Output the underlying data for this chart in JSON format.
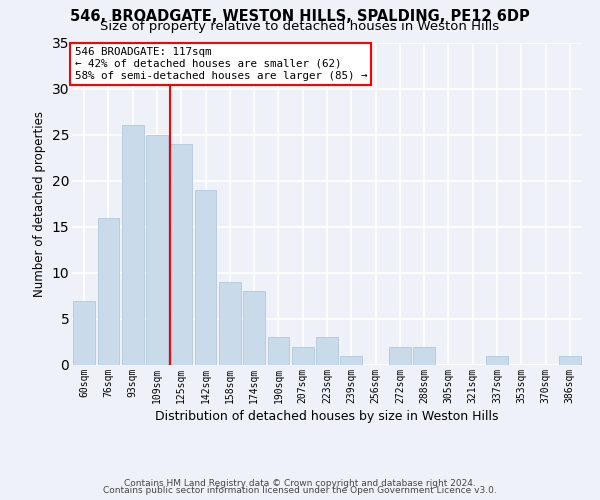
{
  "title1": "546, BROADGATE, WESTON HILLS, SPALDING, PE12 6DP",
  "title2": "Size of property relative to detached houses in Weston Hills",
  "xlabel": "Distribution of detached houses by size in Weston Hills",
  "ylabel": "Number of detached properties",
  "bar_color": "#c9daea",
  "bar_edgecolor": "#b0c8dc",
  "categories": [
    "60sqm",
    "76sqm",
    "93sqm",
    "109sqm",
    "125sqm",
    "142sqm",
    "158sqm",
    "174sqm",
    "190sqm",
    "207sqm",
    "223sqm",
    "239sqm",
    "256sqm",
    "272sqm",
    "288sqm",
    "305sqm",
    "321sqm",
    "337sqm",
    "353sqm",
    "370sqm",
    "386sqm"
  ],
  "values": [
    7,
    16,
    26,
    25,
    24,
    19,
    9,
    8,
    3,
    2,
    3,
    1,
    0,
    2,
    2,
    0,
    0,
    1,
    0,
    0,
    1
  ],
  "annotation_text": "546 BROADGATE: 117sqm\n← 42% of detached houses are smaller (62)\n58% of semi-detached houses are larger (85) →",
  "annotation_box_color": "white",
  "annotation_box_edgecolor": "red",
  "vline_color": "red",
  "vline_x_bin": 3.55,
  "footer_line1": "Contains HM Land Registry data © Crown copyright and database right 2024.",
  "footer_line2": "Contains public sector information licensed under the Open Government Licence v3.0.",
  "ylim": [
    0,
    35
  ],
  "yticks": [
    0,
    5,
    10,
    15,
    20,
    25,
    30,
    35
  ],
  "background_color": "#eef2f8",
  "grid_color": "white",
  "title_fontsize": 10.5,
  "subtitle_fontsize": 9.5,
  "tick_fontsize": 7,
  "xlabel_fontsize": 9,
  "ylabel_fontsize": 8.5,
  "footer_fontsize": 6.5,
  "annot_fontsize": 7.8
}
